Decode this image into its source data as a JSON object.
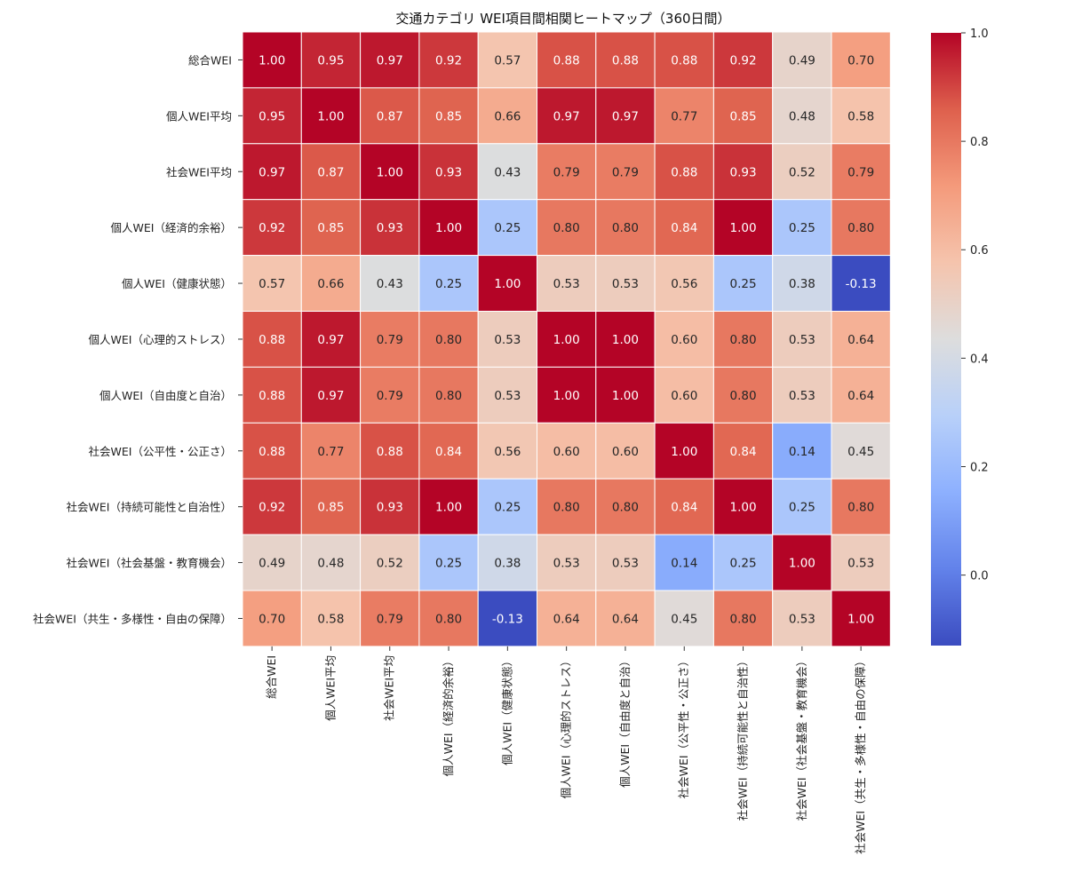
{
  "chart_data": {
    "type": "heatmap",
    "title": "交通カテゴリ WEI項目間相関ヒートマップ（360日間）",
    "labels": [
      "総合WEI",
      "個人WEI平均",
      "社会WEI平均",
      "個人WEI（経済的余裕）",
      "個人WEI（健康状態）",
      "個人WEI（心理的ストレス）",
      "個人WEI（自由度と自治）",
      "社会WEI（公平性・公正さ）",
      "社会WEI（持続可能性と自治性）",
      "社会WEI（社会基盤・教育機会）",
      "社会WEI（共生・多様性・自由の保障）"
    ],
    "matrix": [
      [
        1.0,
        0.95,
        0.97,
        0.92,
        0.57,
        0.88,
        0.88,
        0.88,
        0.92,
        0.49,
        0.7
      ],
      [
        0.95,
        1.0,
        0.87,
        0.85,
        0.66,
        0.97,
        0.97,
        0.77,
        0.85,
        0.48,
        0.58
      ],
      [
        0.97,
        0.87,
        1.0,
        0.93,
        0.43,
        0.79,
        0.79,
        0.88,
        0.93,
        0.52,
        0.79
      ],
      [
        0.92,
        0.85,
        0.93,
        1.0,
        0.25,
        0.8,
        0.8,
        0.84,
        1.0,
        0.25,
        0.8
      ],
      [
        0.57,
        0.66,
        0.43,
        0.25,
        1.0,
        0.53,
        0.53,
        0.56,
        0.25,
        0.38,
        -0.13
      ],
      [
        0.88,
        0.97,
        0.79,
        0.8,
        0.53,
        1.0,
        1.0,
        0.6,
        0.8,
        0.53,
        0.64
      ],
      [
        0.88,
        0.97,
        0.79,
        0.8,
        0.53,
        1.0,
        1.0,
        0.6,
        0.8,
        0.53,
        0.64
      ],
      [
        0.88,
        0.77,
        0.88,
        0.84,
        0.56,
        0.6,
        0.6,
        1.0,
        0.84,
        0.14,
        0.45
      ],
      [
        0.92,
        0.85,
        0.93,
        1.0,
        0.25,
        0.8,
        0.8,
        0.84,
        1.0,
        0.25,
        0.8
      ],
      [
        0.49,
        0.48,
        0.52,
        0.25,
        0.38,
        0.53,
        0.53,
        0.14,
        0.25,
        1.0,
        0.53
      ],
      [
        0.7,
        0.58,
        0.79,
        0.8,
        -0.13,
        0.64,
        0.64,
        0.45,
        0.8,
        0.53,
        1.0
      ]
    ],
    "colormap": "coolwarm",
    "vmin": -0.13,
    "vmax": 1.0,
    "colorbar_ticks": [
      0.0,
      0.2,
      0.4,
      0.6,
      0.8,
      1.0
    ],
    "colorbar_tick_labels": [
      "0.0",
      "0.2",
      "0.4",
      "0.6",
      "0.8",
      "1.0"
    ],
    "annotation_format": "2 decimals"
  }
}
